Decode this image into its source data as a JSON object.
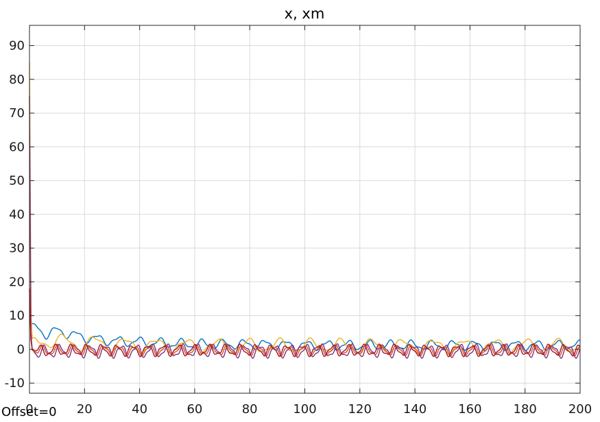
{
  "chart_data": {
    "type": "line",
    "title": "x, xm",
    "xlabel": "",
    "ylabel": "",
    "xlim": [
      0,
      200
    ],
    "ylim": [
      -13,
      96
    ],
    "xticks": [
      0,
      20,
      40,
      60,
      80,
      100,
      120,
      140,
      160,
      180,
      200
    ],
    "yticks": [
      -10,
      0,
      10,
      20,
      30,
      40,
      50,
      60,
      70,
      80,
      90
    ],
    "grid": true,
    "annotation": "Offset=0",
    "colors": {
      "blue": "#0072bd",
      "orange": "#d95319",
      "yellow": "#edb120",
      "purple": "#7e2f8e",
      "red": "#a2142f",
      "grid": "#d9d9d9",
      "axes": "#262626"
    },
    "series": [
      {
        "color": "#0072bd",
        "initial": 8,
        "x": [
          0,
          1,
          3,
          6,
          10,
          15,
          20,
          25,
          30,
          40,
          50,
          60,
          80,
          100,
          120,
          140,
          160,
          180,
          200
        ],
        "values": [
          8,
          7.5,
          6,
          4.5,
          5.5,
          4.5,
          3.5,
          3,
          2.5,
          2.2,
          1.8,
          1.5,
          1.5,
          1.2,
          1.2,
          1.2,
          1.2,
          1.2,
          1.2
        ],
        "osc": 1.2,
        "period": 7.6
      },
      {
        "color": "#edb120",
        "initial": 85,
        "x": [
          0,
          0.6,
          1,
          3,
          6,
          10,
          15,
          20,
          25,
          30,
          40,
          50,
          60,
          80,
          100,
          120,
          140,
          160,
          180,
          200
        ],
        "values": [
          85,
          10,
          3,
          2,
          2.5,
          2.5,
          2,
          1.5,
          2,
          1.5,
          1.2,
          1.2,
          1,
          1,
          1,
          1,
          1,
          1,
          1,
          1
        ],
        "osc": 1.8,
        "period": 11.2
      },
      {
        "color": "#7e2f8e",
        "initial": 75,
        "x": [
          0,
          0.5,
          1,
          3,
          10,
          200
        ],
        "values": [
          75,
          5,
          0,
          -1,
          -0.5,
          -0.5
        ],
        "osc": 1.6,
        "period": 5.6
      },
      {
        "color": "#d95319",
        "initial": 18,
        "x": [
          0,
          0.5,
          1,
          3,
          10,
          200
        ],
        "values": [
          18,
          3,
          0,
          -0.5,
          -0.3,
          -0.3
        ],
        "osc": 1.3,
        "period": 5.6
      },
      {
        "color": "#a2142f",
        "initial": 18,
        "x": [
          0,
          0.5,
          1,
          3,
          10,
          200
        ],
        "values": [
          18,
          3,
          0,
          -0.5,
          -0.3,
          -0.3
        ],
        "osc": 1.4,
        "period": 5.6
      }
    ]
  }
}
